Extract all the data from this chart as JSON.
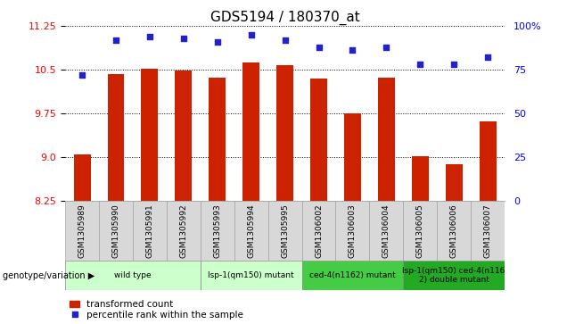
{
  "title": "GDS5194 / 180370_at",
  "samples": [
    "GSM1305989",
    "GSM1305990",
    "GSM1305991",
    "GSM1305992",
    "GSM1305993",
    "GSM1305994",
    "GSM1305995",
    "GSM1306002",
    "GSM1306003",
    "GSM1306004",
    "GSM1306005",
    "GSM1306006",
    "GSM1306007"
  ],
  "bar_values": [
    9.05,
    10.42,
    10.52,
    10.48,
    10.37,
    10.62,
    10.57,
    10.35,
    9.75,
    10.37,
    9.02,
    8.88,
    9.62
  ],
  "percentile_values": [
    72,
    92,
    94,
    93,
    91,
    95,
    92,
    88,
    86,
    88,
    78,
    78,
    82
  ],
  "ylim_left": [
    8.25,
    11.25
  ],
  "ylim_right": [
    0,
    100
  ],
  "yticks_left": [
    8.25,
    9.0,
    9.75,
    10.5,
    11.25
  ],
  "yticks_right": [
    0,
    25,
    50,
    75,
    100
  ],
  "bar_color": "#cc2200",
  "dot_color": "#2222cc",
  "group_splits": [
    0,
    4,
    7,
    10,
    13
  ],
  "group_labels": [
    "wild type",
    "lsp-1(qm150) mutant",
    "ced-4(n1162) mutant",
    "lsp-1(qm150) ced-4(n116\n2) double mutant"
  ],
  "group_colors": [
    "#ccffcc",
    "#ccffcc",
    "#44cc44",
    "#22aa22"
  ],
  "legend_bar_label": "transformed count",
  "legend_dot_label": "percentile rank within the sample",
  "genotype_label": "genotype/variation"
}
